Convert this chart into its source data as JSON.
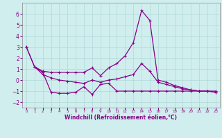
{
  "xlabel": "Windchill (Refroidissement éolien,°C)",
  "ylabel": "",
  "background_color": "#d0eeee",
  "grid_color": "#b0d8d8",
  "line_color": "#880088",
  "xlim": [
    -0.5,
    23.5
  ],
  "ylim": [
    -2.5,
    7.0
  ],
  "xticks": [
    0,
    1,
    2,
    3,
    4,
    5,
    6,
    7,
    8,
    9,
    10,
    11,
    12,
    13,
    14,
    15,
    16,
    17,
    18,
    19,
    20,
    21,
    22,
    23
  ],
  "yticks": [
    -2,
    -1,
    0,
    1,
    2,
    3,
    4,
    5,
    6
  ],
  "line1_x": [
    0,
    1,
    2,
    3,
    4,
    5,
    6,
    7,
    8,
    9,
    10,
    11,
    12,
    13,
    14,
    15,
    16,
    17,
    18,
    19,
    20,
    21,
    22,
    23
  ],
  "line1_y": [
    3.0,
    1.2,
    0.8,
    0.7,
    0.7,
    0.7,
    0.7,
    0.7,
    1.1,
    0.4,
    1.1,
    1.5,
    2.2,
    3.4,
    6.3,
    5.4,
    0.0,
    -0.2,
    -0.5,
    -0.7,
    -0.9,
    -1.0,
    -1.0,
    -1.1
  ],
  "line2_x": [
    1,
    2,
    3,
    4,
    5,
    6,
    7,
    8,
    9,
    10,
    11,
    12,
    13,
    14,
    15,
    16,
    17,
    18,
    19,
    20,
    21,
    22,
    23
  ],
  "line2_y": [
    1.2,
    0.7,
    -1.1,
    -1.2,
    -1.2,
    -1.1,
    -0.6,
    -1.3,
    -0.4,
    -0.3,
    -1.0,
    -1.0,
    -1.0,
    -1.0,
    -1.0,
    -1.0,
    -1.0,
    -1.0,
    -1.0,
    -1.0,
    -1.0,
    -1.0,
    -1.0
  ],
  "line3_x": [
    0,
    1,
    2,
    3,
    4,
    5,
    6,
    7,
    8,
    9,
    10,
    11,
    12,
    13,
    14,
    15,
    16,
    17,
    18,
    19,
    20,
    21,
    22,
    23
  ],
  "line3_y": [
    3.0,
    1.2,
    0.5,
    0.2,
    0.0,
    -0.1,
    -0.2,
    -0.3,
    0.0,
    -0.2,
    0.0,
    0.1,
    0.3,
    0.5,
    1.5,
    0.8,
    -0.2,
    -0.4,
    -0.6,
    -0.8,
    -0.9,
    -1.0,
    -1.0,
    -1.1
  ]
}
